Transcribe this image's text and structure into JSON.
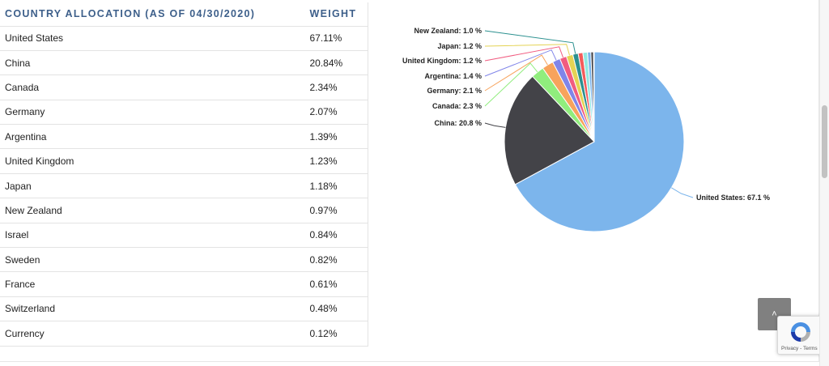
{
  "table": {
    "header_country": "COUNTRY ALLOCATION (AS OF 04/30/2020)",
    "header_weight": "WEIGHT",
    "rows": [
      {
        "country": "United States",
        "weight": "67.11%"
      },
      {
        "country": "China",
        "weight": "20.84%"
      },
      {
        "country": "Canada",
        "weight": "2.34%"
      },
      {
        "country": "Germany",
        "weight": "2.07%"
      },
      {
        "country": "Argentina",
        "weight": "1.39%"
      },
      {
        "country": "United Kingdom",
        "weight": "1.23%"
      },
      {
        "country": "Japan",
        "weight": "1.18%"
      },
      {
        "country": "New Zealand",
        "weight": "0.97%"
      },
      {
        "country": "Israel",
        "weight": "0.84%"
      },
      {
        "country": "Sweden",
        "weight": "0.82%"
      },
      {
        "country": "France",
        "weight": "0.61%"
      },
      {
        "country": "Switzerland",
        "weight": "0.48%"
      },
      {
        "country": "Currency",
        "weight": "0.12%"
      }
    ]
  },
  "chart_data": {
    "type": "pie",
    "title": "",
    "slices": [
      {
        "name": "United States",
        "value": 67.11,
        "label": "United States: 67.1 %",
        "color": "#7cb5ec"
      },
      {
        "name": "China",
        "value": 20.84,
        "label": "China: 20.8 %",
        "color": "#434348"
      },
      {
        "name": "Canada",
        "value": 2.34,
        "label": "Canada: 2.3 %",
        "color": "#90ed7d"
      },
      {
        "name": "Germany",
        "value": 2.07,
        "label": "Germany: 2.1 %",
        "color": "#f7a35c"
      },
      {
        "name": "Argentina",
        "value": 1.39,
        "label": "Argentina: 1.4 %",
        "color": "#8085e9"
      },
      {
        "name": "United Kingdom",
        "value": 1.23,
        "label": "United Kingdom: 1.2 %",
        "color": "#f15c80"
      },
      {
        "name": "Japan",
        "value": 1.18,
        "label": "Japan: 1.2 %",
        "color": "#e4d354"
      },
      {
        "name": "New Zealand",
        "value": 0.97,
        "label": "New Zealand: 1.0 %",
        "color": "#2b908f"
      },
      {
        "name": "Israel",
        "value": 0.84,
        "label": "",
        "color": "#f45b5b"
      },
      {
        "name": "Sweden",
        "value": 0.82,
        "label": "",
        "color": "#91e8e1"
      },
      {
        "name": "France",
        "value": 0.61,
        "label": "",
        "color": "#7cb5ec"
      },
      {
        "name": "Switzerland",
        "value": 0.48,
        "label": "",
        "color": "#434348"
      },
      {
        "name": "Currency",
        "value": 0.12,
        "label": "",
        "color": "#90ed7d"
      }
    ]
  },
  "scroll_top": {
    "glyph": "˄"
  },
  "recaptcha": {
    "terms": "Privacy - Terms"
  }
}
